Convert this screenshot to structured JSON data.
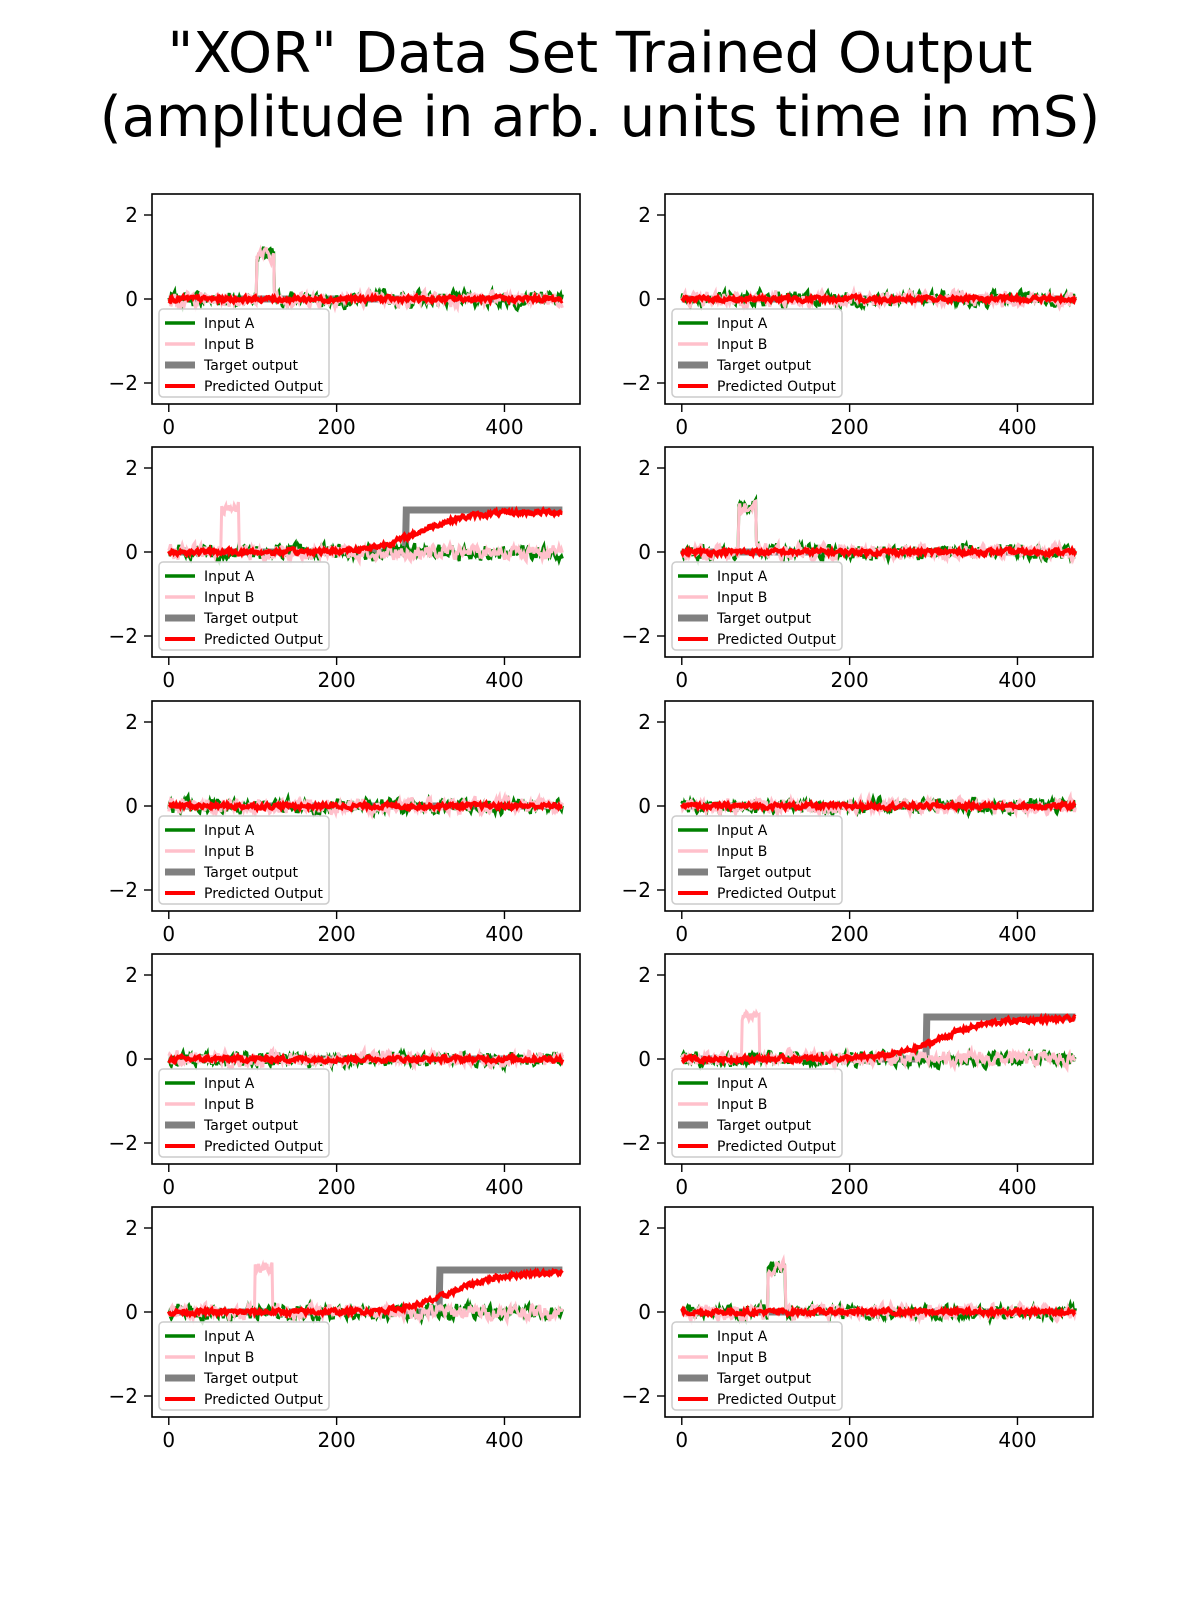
{
  "figure": {
    "title_line1": "\"XOR\" Data Set Trained Output",
    "title_line2": "(amplitude in arb. units time in mS)"
  },
  "chart_data": {
    "type": "line",
    "layout": "5 rows x 2 columns of subplots",
    "x_range": [
      -20,
      490
    ],
    "y_range": [
      -2.5,
      2.5
    ],
    "x_ticks": [
      0,
      200,
      400
    ],
    "y_ticks": [
      -2,
      0,
      2
    ],
    "x_tick_labels": [
      "0",
      "200",
      "400"
    ],
    "y_tick_labels": [
      "−2",
      "0",
      "2"
    ],
    "legend_location": "lower left",
    "series_style": {
      "Input A": {
        "color": "#008000"
      },
      "Input B": {
        "color": "#ffc0cb"
      },
      "Target output": {
        "color": "#808080"
      },
      "Predicted Output": {
        "color": "#ff0000"
      }
    },
    "legend": [
      "Input A",
      "Input B",
      "Target output",
      "Predicted Output"
    ],
    "noise_amplitude": 0.12,
    "panels": [
      {
        "row": 1,
        "col": 1,
        "pulse_a": [
          105,
          125
        ],
        "pulse_b": [
          105,
          125
        ],
        "target_step": null
      },
      {
        "row": 1,
        "col": 2,
        "pulse_a": null,
        "pulse_b": null,
        "target_step": null
      },
      {
        "row": 2,
        "col": 1,
        "pulse_a": null,
        "pulse_b": [
          63,
          83
        ],
        "target_step": 283
      },
      {
        "row": 2,
        "col": 2,
        "pulse_a": [
          68,
          88
        ],
        "pulse_b": [
          68,
          88
        ],
        "target_step": null
      },
      {
        "row": 3,
        "col": 1,
        "pulse_a": null,
        "pulse_b": null,
        "target_step": null
      },
      {
        "row": 3,
        "col": 2,
        "pulse_a": null,
        "pulse_b": null,
        "target_step": null
      },
      {
        "row": 4,
        "col": 1,
        "pulse_a": null,
        "pulse_b": null,
        "target_step": null
      },
      {
        "row": 4,
        "col": 2,
        "pulse_a": null,
        "pulse_b": [
          72,
          92
        ],
        "target_step": 292
      },
      {
        "row": 5,
        "col": 1,
        "pulse_a": null,
        "pulse_b": [
          103,
          123
        ],
        "target_step": 323
      },
      {
        "row": 5,
        "col": 2,
        "pulse_a": [
          103,
          123
        ],
        "pulse_b": [
          103,
          123
        ],
        "target_step": null
      }
    ]
  }
}
